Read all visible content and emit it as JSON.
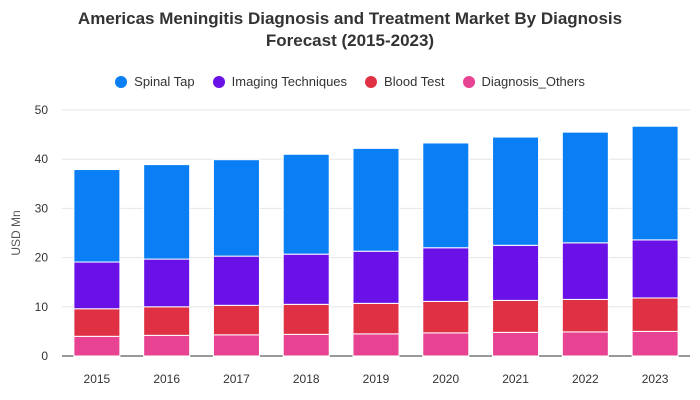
{
  "chart_data": {
    "type": "bar",
    "stacked": true,
    "title": "Americas Meningitis Diagnosis and Treatment Market By Diagnosis Forecast (2015-2023)",
    "title_lines": [
      "Americas Meningitis Diagnosis and Treatment Market By Diagnosis",
      "Forecast (2015-2023)"
    ],
    "ylabel": "USD Mn",
    "xlabel": "",
    "ylim": [
      0,
      50
    ],
    "yticks": [
      0,
      10,
      20,
      30,
      40,
      50
    ],
    "grid": true,
    "legend_position": "top-center",
    "categories": [
      "2015",
      "2016",
      "2017",
      "2018",
      "2019",
      "2020",
      "2021",
      "2022",
      "2023"
    ],
    "series": [
      {
        "name": "Diagnosis_Others",
        "color": "#e84393",
        "values": [
          4.0,
          4.2,
          4.3,
          4.4,
          4.5,
          4.7,
          4.8,
          4.9,
          5.0
        ]
      },
      {
        "name": "Blood Test",
        "color": "#e03144",
        "values": [
          5.6,
          5.8,
          6.0,
          6.1,
          6.2,
          6.4,
          6.5,
          6.6,
          6.8
        ]
      },
      {
        "name": "Imaging Techniques",
        "color": "#6a11e8",
        "values": [
          9.5,
          9.7,
          10.0,
          10.2,
          10.6,
          10.9,
          11.2,
          11.5,
          11.8
        ]
      },
      {
        "name": "Spinal Tap",
        "color": "#0a7ef5",
        "values": [
          18.8,
          19.2,
          19.6,
          20.3,
          20.9,
          21.3,
          22.0,
          22.5,
          23.1
        ]
      }
    ],
    "legend_order": [
      "Spinal Tap",
      "Imaging Techniques",
      "Blood Test",
      "Diagnosis_Others"
    ]
  }
}
